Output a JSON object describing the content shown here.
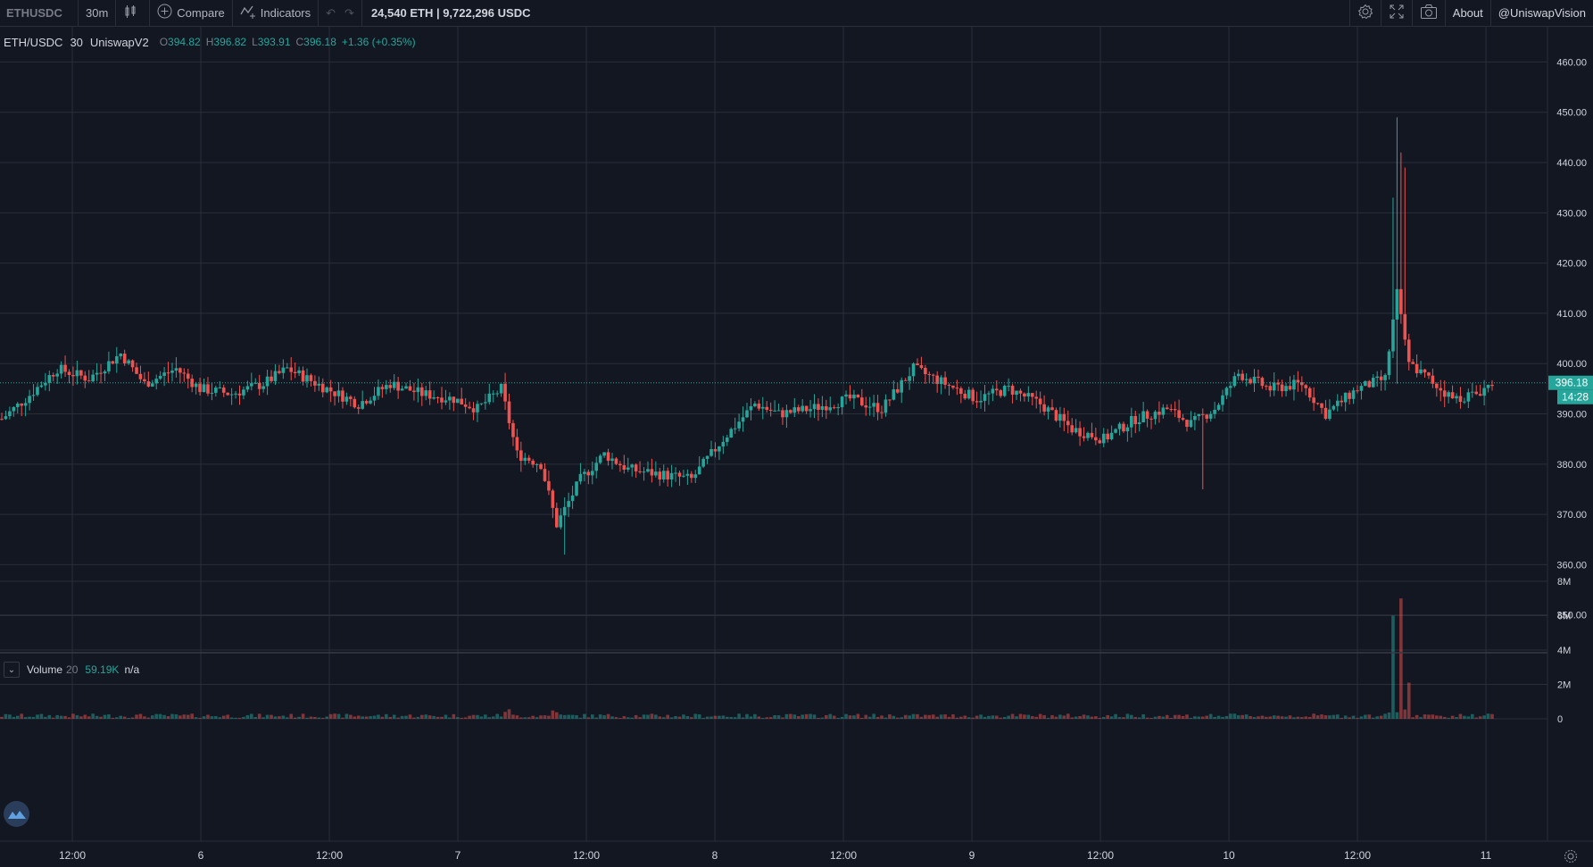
{
  "toolbar": {
    "symbol": "ETHUSDC",
    "interval": "30m",
    "compare_label": "Compare",
    "indicators_label": "Indicators",
    "stats": "24,540 ETH | 9,722,296 USDC",
    "about_label": "About",
    "account_label": "@UniswapVision",
    "icons": [
      "candles-icon",
      "plus-circle-icon",
      "indicators-icon",
      "undo-icon",
      "redo-icon",
      "settings-icon",
      "fullscreen-icon",
      "camera-icon"
    ]
  },
  "legend": {
    "pair": "ETH/USDC",
    "interval": "30",
    "exchange": "UniswapV2",
    "o_key": "O",
    "o": "394.82",
    "h_key": "H",
    "h": "396.82",
    "l_key": "L",
    "l": "393.91",
    "c_key": "C",
    "c": "396.18",
    "change": "+1.36 (+0.35%)"
  },
  "volume_legend": {
    "name": "Volume",
    "length": "20",
    "value": "59.19K",
    "ma": "n/a"
  },
  "price_tag": {
    "price": "396.18",
    "countdown": "14:28"
  },
  "colors": {
    "up": "#26a69a",
    "down": "#ef5350",
    "bg": "#131722",
    "grid": "#2a2e39",
    "axis_text": "#d1d4dc"
  },
  "chart_data": {
    "type": "candlestick",
    "title": "",
    "price_axis": {
      "ticks": [
        "460.00",
        "450.00",
        "440.00",
        "430.00",
        "420.00",
        "410.00",
        "400.00",
        "390.00",
        "380.00",
        "370.00",
        "360.00",
        "350.00"
      ],
      "ylim": [
        348,
        467
      ]
    },
    "volume_axis": {
      "ticks": [
        "8M",
        "6M",
        "4M",
        "2M",
        "0"
      ],
      "ylim": [
        0,
        8
      ]
    },
    "x_ticks": [
      "12:00",
      "6",
      "12:00",
      "7",
      "12:00",
      "8",
      "12:00",
      "9",
      "12:00",
      "10",
      "12:00",
      "11"
    ],
    "last_price": 396.18,
    "grid": true,
    "legend_position": "top-left",
    "candles_control_points": [
      {
        "t": 0,
        "p": 389
      },
      {
        "t": 6,
        "p": 393
      },
      {
        "t": 14,
        "p": 399
      },
      {
        "t": 22,
        "p": 397
      },
      {
        "t": 30,
        "p": 402
      },
      {
        "t": 36,
        "p": 396
      },
      {
        "t": 44,
        "p": 399
      },
      {
        "t": 50,
        "p": 395
      },
      {
        "t": 58,
        "p": 394
      },
      {
        "t": 66,
        "p": 396
      },
      {
        "t": 72,
        "p": 399
      },
      {
        "t": 82,
        "p": 395
      },
      {
        "t": 90,
        "p": 392
      },
      {
        "t": 98,
        "p": 396
      },
      {
        "t": 106,
        "p": 394
      },
      {
        "t": 114,
        "p": 393
      },
      {
        "t": 120,
        "p": 391
      },
      {
        "t": 126,
        "p": 395
      },
      {
        "t": 130,
        "p": 382
      },
      {
        "t": 136,
        "p": 380
      },
      {
        "t": 140,
        "p": 368
      },
      {
        "t": 146,
        "p": 377
      },
      {
        "t": 152,
        "p": 382
      },
      {
        "t": 158,
        "p": 379
      },
      {
        "t": 166,
        "p": 378
      },
      {
        "t": 174,
        "p": 377
      },
      {
        "t": 182,
        "p": 385
      },
      {
        "t": 190,
        "p": 392
      },
      {
        "t": 196,
        "p": 390
      },
      {
        "t": 204,
        "p": 391
      },
      {
        "t": 214,
        "p": 393
      },
      {
        "t": 222,
        "p": 391
      },
      {
        "t": 230,
        "p": 399
      },
      {
        "t": 238,
        "p": 396
      },
      {
        "t": 246,
        "p": 393
      },
      {
        "t": 254,
        "p": 395
      },
      {
        "t": 262,
        "p": 392
      },
      {
        "t": 270,
        "p": 387
      },
      {
        "t": 278,
        "p": 385
      },
      {
        "t": 286,
        "p": 389
      },
      {
        "t": 294,
        "p": 391
      },
      {
        "t": 300,
        "p": 388
      },
      {
        "t": 306,
        "p": 391
      },
      {
        "t": 312,
        "p": 398
      },
      {
        "t": 320,
        "p": 395
      },
      {
        "t": 328,
        "p": 396
      },
      {
        "t": 334,
        "p": 390
      },
      {
        "t": 342,
        "p": 395
      },
      {
        "t": 349,
        "p": 397
      },
      {
        "t": 352,
        "p": 414
      },
      {
        "t": 355,
        "p": 400
      },
      {
        "t": 360,
        "p": 397
      },
      {
        "t": 366,
        "p": 393
      },
      {
        "t": 372,
        "p": 394
      },
      {
        "t": 376,
        "p": 396.18
      }
    ],
    "volume_spikes": [
      {
        "t": 351,
        "v": 6.0
      },
      {
        "t": 353,
        "v": 7.0
      },
      {
        "t": 355,
        "v": 2.1
      }
    ]
  }
}
